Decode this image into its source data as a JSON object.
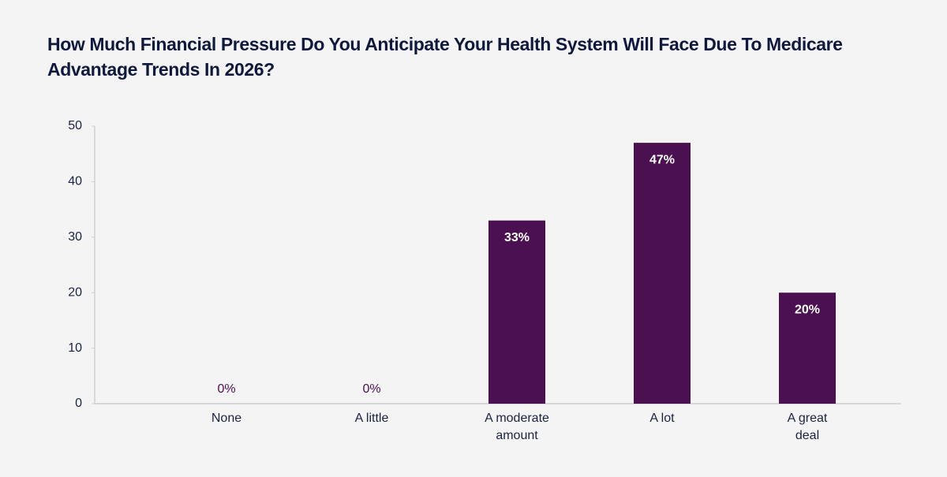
{
  "chart_data": {
    "type": "bar",
    "title": "How Much Financial Pressure Do You Anticipate Your Health System Will Face Due To Medicare Advantage Trends In 2026?",
    "categories": [
      "None",
      "A little",
      "A moderate amount",
      "A lot",
      "A great deal"
    ],
    "values": [
      0,
      0,
      33,
      47,
      20
    ],
    "value_labels": [
      "0%",
      "0%",
      "33%",
      "47%",
      "20%"
    ],
    "color": "#4b1050",
    "ylim": [
      0,
      50
    ],
    "yticks": [
      0,
      10,
      20,
      30,
      40,
      50
    ],
    "grid": false
  }
}
